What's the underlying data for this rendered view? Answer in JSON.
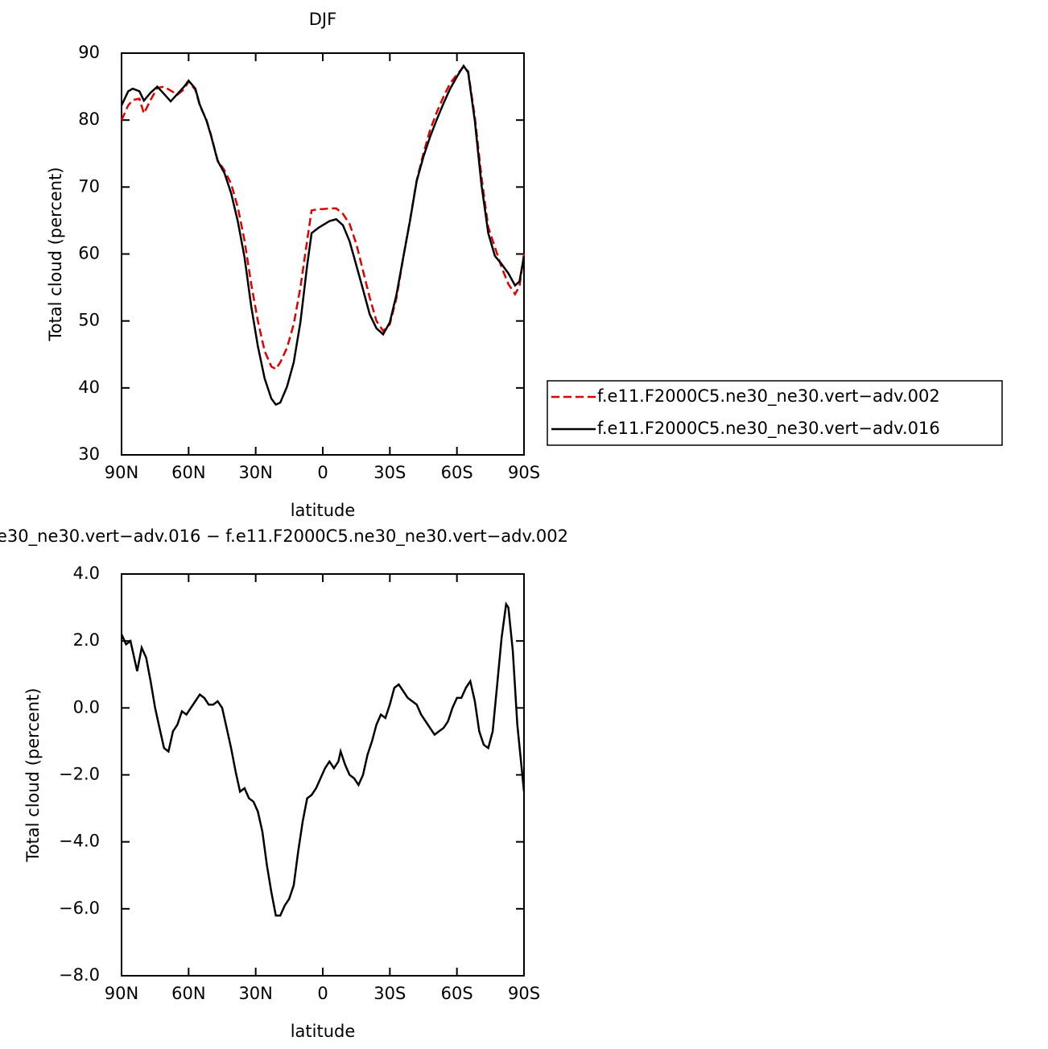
{
  "chart_data": [
    {
      "type": "line",
      "title": "DJF",
      "xlabel": "latitude",
      "ylabel": "Total cloud (percent)",
      "x": [
        90,
        87,
        85,
        82,
        80,
        77,
        74,
        71,
        68,
        65,
        62,
        60,
        57,
        55,
        52,
        50,
        47,
        44,
        41,
        38,
        35,
        32,
        29,
        26,
        23,
        21,
        19,
        16,
        13,
        10,
        7,
        5,
        2,
        0,
        -3,
        -6,
        -9,
        -12,
        -15,
        -18,
        -21,
        -24,
        -27,
        -30,
        -33,
        -36,
        -39,
        -42,
        -45,
        -48,
        -51,
        -54,
        -57,
        -60,
        -63,
        -65,
        -68,
        -71,
        -74,
        -77,
        -80,
        -83,
        -86,
        -88,
        -90
      ],
      "series": [
        {
          "name": "f.e11.F2000C5.ne30_ne30.vert−adv.002",
          "color": "#e00000",
          "dashed": true,
          "values": [
            80.0,
            82.2,
            83.0,
            83.2,
            81.0,
            83.0,
            84.8,
            85.0,
            84.4,
            83.8,
            84.6,
            85.8,
            84.5,
            82.2,
            80.0,
            77.8,
            74.0,
            72.5,
            70.5,
            67.0,
            62.0,
            55.5,
            50.0,
            45.5,
            43.2,
            42.8,
            43.8,
            46.0,
            49.5,
            55.0,
            62.0,
            66.5,
            66.7,
            66.7,
            66.8,
            66.8,
            66.0,
            64.5,
            61.5,
            57.5,
            53.5,
            50.0,
            48.5,
            49.5,
            53.5,
            59.5,
            65.0,
            71.0,
            75.0,
            78.5,
            81.2,
            83.5,
            85.5,
            86.8,
            88.0,
            87.3,
            80.5,
            71.5,
            64.0,
            61.0,
            58.0,
            55.5,
            54.0,
            55.2,
            60.0
          ]
        },
        {
          "name": "f.e11.F2000C5.ne30_ne30.vert−adv.016",
          "color": "#000000",
          "dashed": false,
          "values": [
            82.2,
            84.3,
            84.7,
            84.3,
            82.9,
            84.1,
            85.0,
            83.9,
            82.8,
            83.9,
            85.0,
            85.9,
            84.7,
            82.3,
            79.9,
            77.7,
            73.9,
            72.1,
            69.1,
            64.9,
            59.5,
            52.2,
            46.2,
            41.4,
            38.4,
            37.5,
            37.8,
            40.2,
            43.8,
            49.8,
            58.3,
            63.1,
            63.9,
            64.3,
            64.9,
            65.2,
            64.3,
            61.9,
            58.3,
            54.7,
            51.0,
            48.9,
            48.0,
            49.8,
            54.0,
            59.5,
            64.9,
            70.9,
            74.5,
            77.5,
            80.1,
            82.5,
            84.7,
            86.5,
            88.1,
            87.1,
            79.9,
            70.3,
            63.1,
            59.7,
            58.5,
            57.1,
            55.3,
            55.9,
            59.7
          ]
        }
      ],
      "xlim": [
        90,
        -90
      ],
      "xticks": [
        {
          "value": 90,
          "label": "90N"
        },
        {
          "value": 60,
          "label": "60N"
        },
        {
          "value": 30,
          "label": "30N"
        },
        0,
        {
          "value": -30,
          "label": "30S"
        },
        {
          "value": -60,
          "label": "60S"
        },
        {
          "value": -90,
          "label": "90S"
        }
      ],
      "ylim": [
        30,
        90
      ],
      "yticks": [
        30,
        40,
        50,
        60,
        70,
        80,
        90
      ],
      "legend": "right"
    },
    {
      "type": "line",
      "title": "e30_ne30.vert−adv.016 − f.e11.F2000C5.ne30_ne30.vert−adv.002",
      "xlabel": "latitude",
      "ylabel": "Total cloud (percent)",
      "x": [
        90,
        88,
        86,
        83,
        81,
        79,
        77,
        75,
        73,
        71,
        69,
        67,
        65,
        63,
        61,
        59,
        57,
        55,
        53,
        51,
        49,
        47,
        45,
        43,
        41,
        39,
        37,
        35,
        33,
        31,
        29,
        27,
        25,
        23,
        21,
        19,
        17,
        15,
        13,
        11,
        9,
        7,
        5,
        3,
        1,
        -1,
        -3,
        -5,
        -7,
        -8,
        -10,
        -12,
        -14,
        -16,
        -18,
        -20,
        -22,
        -24,
        -26,
        -28,
        -30,
        -32,
        -34,
        -36,
        -38,
        -40,
        -42,
        -44,
        -46,
        -48,
        -50,
        -52,
        -54,
        -56,
        -58,
        -60,
        -62,
        -64,
        -66,
        -68,
        -70,
        -72,
        -74,
        -76,
        -78,
        -80,
        -82,
        -83,
        -85,
        -87,
        -90
      ],
      "series": [
        {
          "color": "#000000",
          "dashed": false,
          "values": [
            2.2,
            1.9,
            2.0,
            1.1,
            1.8,
            1.5,
            0.8,
            0.0,
            -0.6,
            -1.2,
            -1.3,
            -0.7,
            -0.5,
            -0.1,
            -0.2,
            0.0,
            0.2,
            0.4,
            0.3,
            0.1,
            0.1,
            0.2,
            0.0,
            -0.6,
            -1.2,
            -1.9,
            -2.5,
            -2.4,
            -2.7,
            -2.8,
            -3.1,
            -3.7,
            -4.7,
            -5.5,
            -6.2,
            -6.2,
            -5.9,
            -5.7,
            -5.3,
            -4.3,
            -3.4,
            -2.7,
            -2.6,
            -2.4,
            -2.1,
            -1.8,
            -1.6,
            -1.8,
            -1.6,
            -1.3,
            -1.7,
            -2.0,
            -2.1,
            -2.3,
            -2.0,
            -1.4,
            -1.0,
            -0.5,
            -0.2,
            -0.3,
            0.1,
            0.6,
            0.7,
            0.5,
            0.3,
            0.2,
            0.1,
            -0.2,
            -0.4,
            -0.6,
            -0.8,
            -0.7,
            -0.6,
            -0.4,
            0.0,
            0.3,
            0.3,
            0.6,
            0.8,
            0.2,
            -0.7,
            -1.1,
            -1.2,
            -0.7,
            0.7,
            2.1,
            3.1,
            3.0,
            1.7,
            -0.5,
            -2.5
          ]
        }
      ],
      "xlim": [
        90,
        -90
      ],
      "xticks": [
        {
          "value": 90,
          "label": "90N"
        },
        {
          "value": 60,
          "label": "60N"
        },
        {
          "value": 30,
          "label": "30N"
        },
        0,
        {
          "value": -30,
          "label": "30S"
        },
        {
          "value": -60,
          "label": "60S"
        },
        {
          "value": -90,
          "label": "90S"
        }
      ],
      "ylim": [
        -8,
        4
      ],
      "yticks": [
        {
          "value": -8,
          "label": "−8.0"
        },
        {
          "value": -6,
          "label": "−6.0"
        },
        {
          "value": -4,
          "label": "−4.0"
        },
        {
          "value": -2,
          "label": "−2.0"
        },
        {
          "value": 0,
          "label": "0.0"
        },
        {
          "value": 2,
          "label": "2.0"
        },
        {
          "value": 4,
          "label": "4.0"
        }
      ]
    }
  ]
}
